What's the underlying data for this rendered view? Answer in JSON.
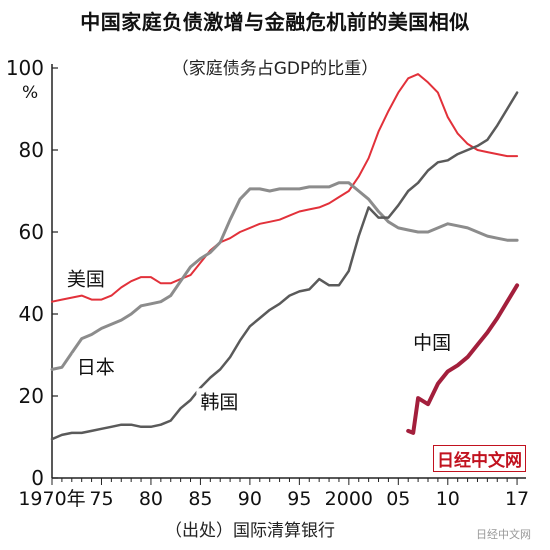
{
  "header": {
    "title": "中国家庭负债激增与金融危机前的美国相似",
    "subtitle": "（家庭债务占GDP的比重）"
  },
  "footer": {
    "source": "（出处）国际清算银行",
    "watermark": "日经中文网",
    "corner_mark": "日经中文网"
  },
  "chart_data": {
    "type": "line",
    "title": "中国家庭负债激增与金融危机前的美国相似",
    "subtitle": "（家庭债务占GDP的比重）",
    "y_unit": "%",
    "ylim": [
      0,
      100
    ],
    "xlim": [
      1970,
      2017.5
    ],
    "y_ticks": [
      0,
      20,
      40,
      60,
      80,
      100
    ],
    "x_ticks": [
      {
        "value": 1970,
        "label": "1970年"
      },
      {
        "value": 1975,
        "label": "75"
      },
      {
        "value": 1980,
        "label": "80"
      },
      {
        "value": 1985,
        "label": "85"
      },
      {
        "value": 1990,
        "label": "90"
      },
      {
        "value": 1995,
        "label": "95"
      },
      {
        "value": 2000,
        "label": "2000"
      },
      {
        "value": 2005,
        "label": "05"
      },
      {
        "value": 2010,
        "label": "10"
      },
      {
        "value": 2017,
        "label": "17"
      }
    ],
    "grid": false,
    "series": [
      {
        "name": "美国",
        "color": "#e2313a",
        "width": 2,
        "label_at": [
          1971.5,
          47
        ],
        "points": [
          [
            1970,
            43
          ],
          [
            1971,
            43.5
          ],
          [
            1972,
            44
          ],
          [
            1973,
            44.5
          ],
          [
            1974,
            43.5
          ],
          [
            1975,
            43.5
          ],
          [
            1976,
            44.5
          ],
          [
            1977,
            46.5
          ],
          [
            1978,
            48
          ],
          [
            1979,
            49
          ],
          [
            1980,
            49
          ],
          [
            1981,
            47.5
          ],
          [
            1982,
            47.5
          ],
          [
            1983,
            48.5
          ],
          [
            1984,
            49.5
          ],
          [
            1985,
            52.5
          ],
          [
            1986,
            55.5
          ],
          [
            1987,
            57.5
          ],
          [
            1988,
            58.5
          ],
          [
            1989,
            60
          ],
          [
            1990,
            61
          ],
          [
            1991,
            62
          ],
          [
            1992,
            62.5
          ],
          [
            1993,
            63
          ],
          [
            1994,
            64
          ],
          [
            1995,
            65
          ],
          [
            1996,
            65.5
          ],
          [
            1997,
            66
          ],
          [
            1998,
            67
          ],
          [
            1999,
            68.5
          ],
          [
            2000,
            70
          ],
          [
            2001,
            73.5
          ],
          [
            2002,
            78
          ],
          [
            2003,
            84.5
          ],
          [
            2004,
            89.5
          ],
          [
            2005,
            94
          ],
          [
            2006,
            97.5
          ],
          [
            2007,
            98.5
          ],
          [
            2008,
            96.5
          ],
          [
            2009,
            94
          ],
          [
            2010,
            88
          ],
          [
            2011,
            84
          ],
          [
            2012,
            81.5
          ],
          [
            2013,
            80
          ],
          [
            2014,
            79.5
          ],
          [
            2015,
            79
          ],
          [
            2016,
            78.5
          ],
          [
            2017,
            78.5
          ]
        ]
      },
      {
        "name": "日本",
        "color": "#8c8c8c",
        "width": 3,
        "label_at": [
          1972.5,
          25.5
        ],
        "points": [
          [
            1970,
            26.5
          ],
          [
            1971,
            27
          ],
          [
            1972,
            30.5
          ],
          [
            1973,
            34
          ],
          [
            1974,
            35
          ],
          [
            1975,
            36.5
          ],
          [
            1976,
            37.5
          ],
          [
            1977,
            38.5
          ],
          [
            1978,
            40
          ],
          [
            1979,
            42
          ],
          [
            1980,
            42.5
          ],
          [
            1981,
            43
          ],
          [
            1982,
            44.5
          ],
          [
            1983,
            48
          ],
          [
            1984,
            51.5
          ],
          [
            1985,
            53.5
          ],
          [
            1986,
            55
          ],
          [
            1987,
            57.5
          ],
          [
            1988,
            63
          ],
          [
            1989,
            68
          ],
          [
            1990,
            70.5
          ],
          [
            1991,
            70.5
          ],
          [
            1992,
            70
          ],
          [
            1993,
            70.5
          ],
          [
            1994,
            70.5
          ],
          [
            1995,
            70.5
          ],
          [
            1996,
            71
          ],
          [
            1997,
            71
          ],
          [
            1998,
            71
          ],
          [
            1999,
            72
          ],
          [
            2000,
            72
          ],
          [
            2001,
            70
          ],
          [
            2002,
            68
          ],
          [
            2003,
            65
          ],
          [
            2004,
            62.5
          ],
          [
            2005,
            61
          ],
          [
            2006,
            60.5
          ],
          [
            2007,
            60
          ],
          [
            2008,
            60
          ],
          [
            2009,
            61
          ],
          [
            2010,
            62
          ],
          [
            2011,
            61.5
          ],
          [
            2012,
            61
          ],
          [
            2013,
            60
          ],
          [
            2014,
            59
          ],
          [
            2015,
            58.5
          ],
          [
            2016,
            58
          ],
          [
            2017,
            58
          ]
        ]
      },
      {
        "name": "韩国",
        "color": "#5a5a5a",
        "width": 2.5,
        "label_at": [
          1985,
          17
        ],
        "points": [
          [
            1970,
            9.5
          ],
          [
            1971,
            10.5
          ],
          [
            1972,
            11
          ],
          [
            1973,
            11
          ],
          [
            1974,
            11.5
          ],
          [
            1975,
            12
          ],
          [
            1976,
            12.5
          ],
          [
            1977,
            13
          ],
          [
            1978,
            13
          ],
          [
            1979,
            12.5
          ],
          [
            1980,
            12.5
          ],
          [
            1981,
            13
          ],
          [
            1982,
            14
          ],
          [
            1983,
            17
          ],
          [
            1984,
            19
          ],
          [
            1985,
            22
          ],
          [
            1986,
            24.5
          ],
          [
            1987,
            26.5
          ],
          [
            1988,
            29.5
          ],
          [
            1989,
            33.5
          ],
          [
            1990,
            37
          ],
          [
            1991,
            39
          ],
          [
            1992,
            41
          ],
          [
            1993,
            42.5
          ],
          [
            1994,
            44.5
          ],
          [
            1995,
            45.5
          ],
          [
            1996,
            46
          ],
          [
            1997,
            48.5
          ],
          [
            1998,
            47
          ],
          [
            1999,
            47
          ],
          [
            2000,
            50.5
          ],
          [
            2001,
            59
          ],
          [
            2002,
            66
          ],
          [
            2003,
            63.5
          ],
          [
            2004,
            63.5
          ],
          [
            2005,
            66.5
          ],
          [
            2006,
            70
          ],
          [
            2007,
            72
          ],
          [
            2008,
            75
          ],
          [
            2009,
            77
          ],
          [
            2010,
            77.5
          ],
          [
            2011,
            79
          ],
          [
            2012,
            80
          ],
          [
            2013,
            81
          ],
          [
            2014,
            82.5
          ],
          [
            2015,
            86
          ],
          [
            2016,
            90
          ],
          [
            2017,
            94
          ]
        ]
      },
      {
        "name": "中国",
        "color": "#a31f3c",
        "width": 4,
        "label_at": [
          2006.5,
          31.5
        ],
        "points": [
          [
            2006,
            11.5
          ],
          [
            2006.5,
            11
          ],
          [
            2007,
            19.5
          ],
          [
            2008,
            18
          ],
          [
            2009,
            23
          ],
          [
            2010,
            26
          ],
          [
            2011,
            27.5
          ],
          [
            2012,
            29.5
          ],
          [
            2013,
            32.5
          ],
          [
            2014,
            35.5
          ],
          [
            2015,
            39
          ],
          [
            2016,
            43
          ],
          [
            2017,
            47
          ]
        ]
      }
    ]
  }
}
